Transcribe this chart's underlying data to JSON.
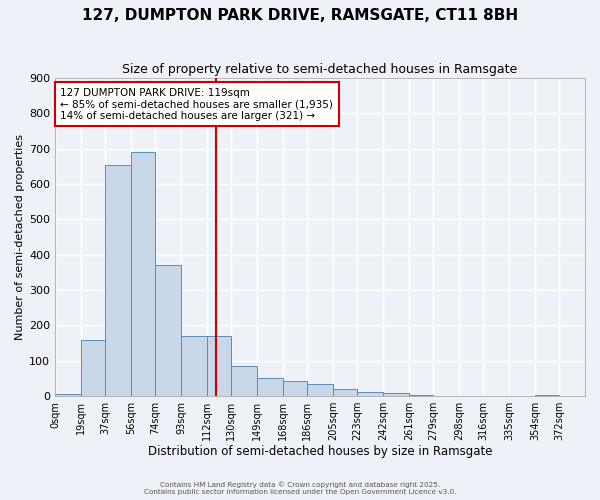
{
  "title": "127, DUMPTON PARK DRIVE, RAMSGATE, CT11 8BH",
  "subtitle": "Size of property relative to semi-detached houses in Ramsgate",
  "xlabel": "Distribution of semi-detached houses by size in Ramsgate",
  "ylabel": "Number of semi-detached properties",
  "bin_labels": [
    "0sqm",
    "19sqm",
    "37sqm",
    "56sqm",
    "74sqm",
    "93sqm",
    "112sqm",
    "130sqm",
    "149sqm",
    "168sqm",
    "186sqm",
    "205sqm",
    "223sqm",
    "242sqm",
    "261sqm",
    "279sqm",
    "298sqm",
    "316sqm",
    "335sqm",
    "354sqm",
    "372sqm"
  ],
  "bin_edges": [
    0,
    19,
    37,
    56,
    74,
    93,
    112,
    130,
    149,
    168,
    186,
    205,
    223,
    242,
    261,
    279,
    298,
    316,
    335,
    354,
    372
  ],
  "bar_heights": [
    5,
    160,
    655,
    690,
    370,
    170,
    170,
    85,
    50,
    42,
    35,
    20,
    12,
    10,
    2,
    1,
    0,
    0,
    0,
    2
  ],
  "bar_color": "#c8d8e8",
  "bar_edge_color": "#5b8db8",
  "vline_x": 119,
  "vline_color": "#cc0000",
  "annotation_line1": "127 DUMPTON PARK DRIVE: 119sqm",
  "annotation_line2": "← 85% of semi-detached houses are smaller (1,935)",
  "annotation_line3": "14% of semi-detached houses are larger (321) →",
  "annotation_box_color": "#cc0000",
  "ylim": [
    0,
    900
  ],
  "yticks": [
    0,
    100,
    200,
    300,
    400,
    500,
    600,
    700,
    800,
    900
  ],
  "background_color": "#eef2f8",
  "grid_color": "#ffffff",
  "footer_line1": "Contains HM Land Registry data © Crown copyright and database right 2025.",
  "footer_line2": "Contains public sector information licensed under the Open Government Licence v3.0.",
  "title_fontsize": 11,
  "subtitle_fontsize": 9
}
